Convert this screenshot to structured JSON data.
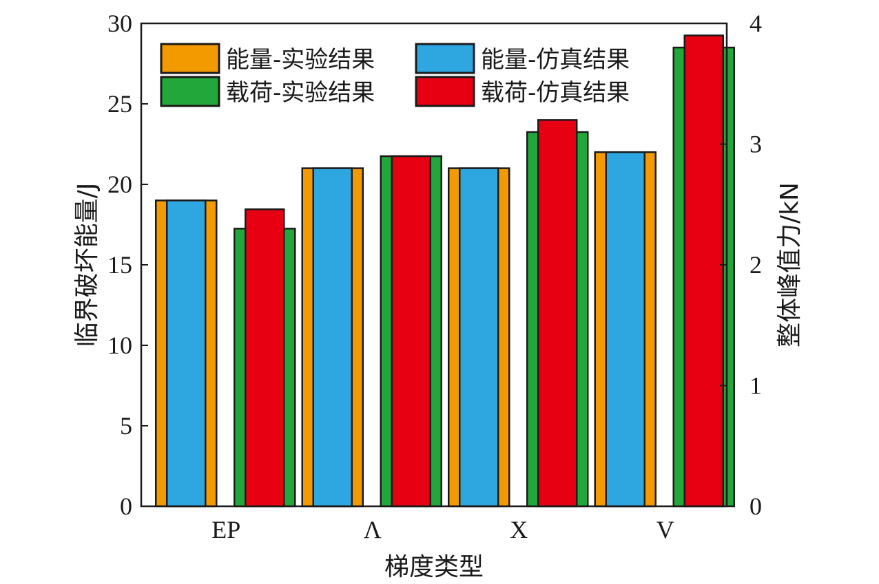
{
  "chart_data": {
    "type": "bar",
    "xlabel": "梯度类型",
    "ylabel_left": "临界破坏能量/J",
    "ylabel_right": "整体峰值力/kN",
    "categories": [
      "EP",
      "Λ",
      "X",
      "V"
    ],
    "ylim_left": [
      0,
      30
    ],
    "ylim_right": [
      0,
      4
    ],
    "yticks_left": [
      0,
      5,
      10,
      15,
      20,
      25,
      30
    ],
    "yticks_right": [
      0,
      1,
      2,
      3,
      4
    ],
    "grid": false,
    "legend_position": "top-left",
    "series": [
      {
        "name": "能量-实验结果",
        "axis": "left",
        "color": "#f39a00",
        "values": [
          19,
          21,
          21,
          22
        ]
      },
      {
        "name": "能量-仿真结果",
        "axis": "left",
        "color": "#2ea7e0",
        "values": [
          19,
          21,
          21,
          22
        ]
      },
      {
        "name": "载荷-实验结果",
        "axis": "right",
        "color": "#22a83a",
        "values": [
          2.3,
          2.9,
          3.1,
          3.8
        ]
      },
      {
        "name": "载荷-仿真结果",
        "axis": "right",
        "color": "#e60012",
        "values": [
          2.46,
          2.9,
          3.2,
          3.9
        ]
      }
    ]
  }
}
